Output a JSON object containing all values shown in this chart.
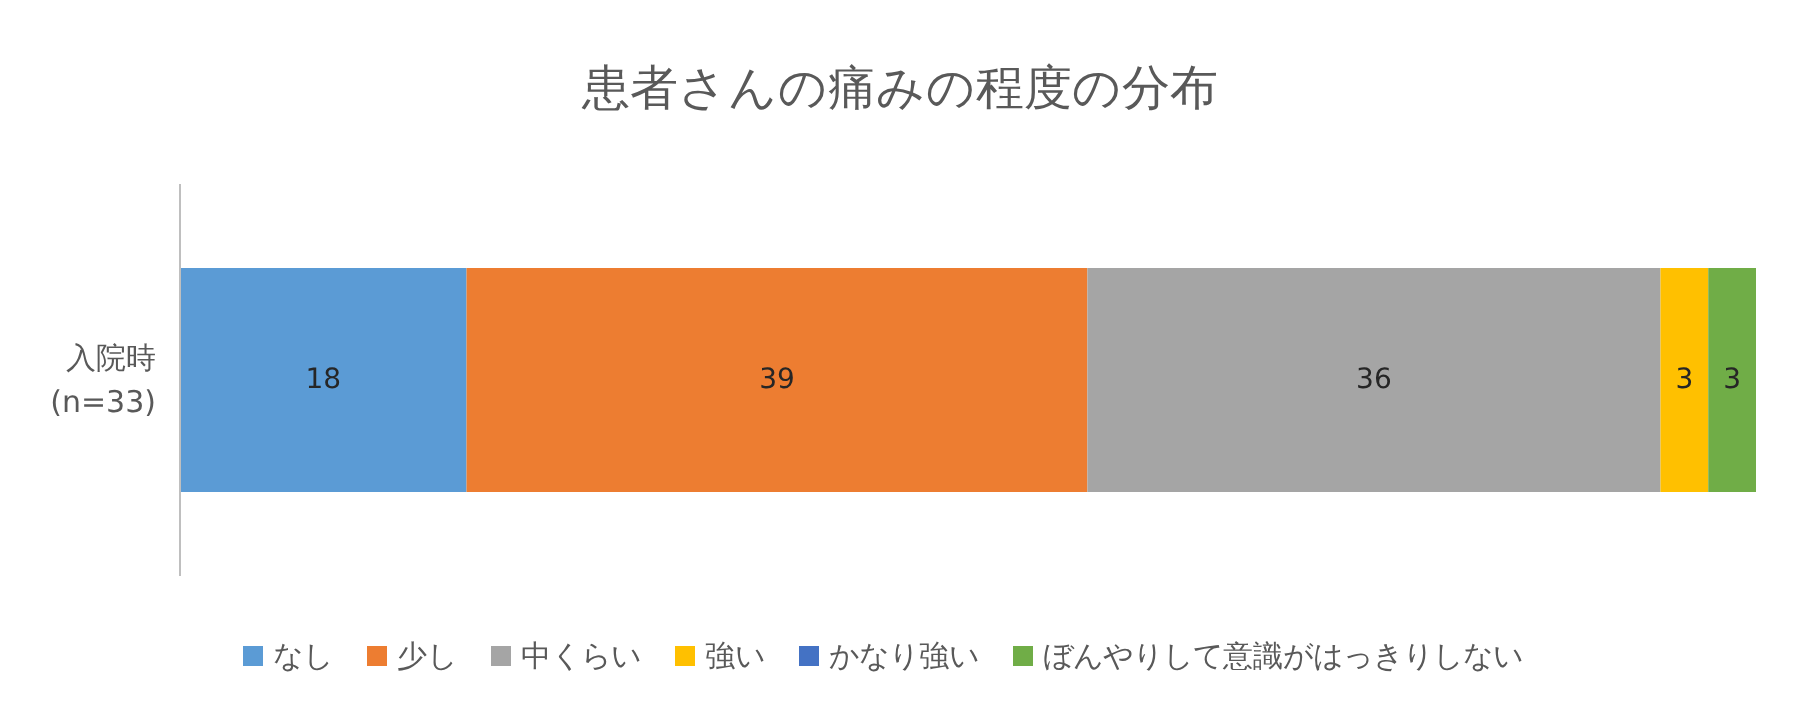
{
  "chart_data": {
    "type": "bar",
    "orientation": "horizontal",
    "stacked": true,
    "title": "患者さんの痛みの程度の分布",
    "categories": [
      "入院時\n(n=33)"
    ],
    "series": [
      {
        "name": "なし",
        "color": "#5b9bd5",
        "values": [
          18
        ],
        "value_labels": [
          "18"
        ]
      },
      {
        "name": "少し",
        "color": "#ed7d31",
        "values": [
          39
        ],
        "value_labels": [
          "39"
        ]
      },
      {
        "name": "中くらい",
        "color": "#a5a5a5",
        "values": [
          36
        ],
        "value_labels": [
          "36"
        ]
      },
      {
        "name": "強い",
        "color": "#ffc000",
        "values": [
          3
        ],
        "value_labels": [
          "3"
        ]
      },
      {
        "name": "かなり強い",
        "color": "#4472c4",
        "values": [
          0
        ],
        "value_labels": [
          null
        ]
      },
      {
        "name": "ぼんやりして意識がはっきりしない",
        "color": "#70ad47",
        "values": [
          3
        ],
        "value_labels": [
          "3"
        ]
      }
    ],
    "legend": "bottom",
    "grid": false
  }
}
